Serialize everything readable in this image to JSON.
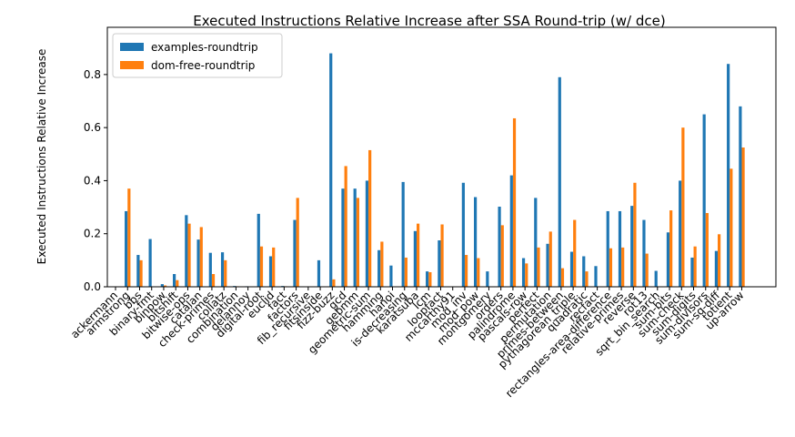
{
  "chart_data": {
    "type": "bar",
    "title": "Executed Instructions Relative Increase after SSA Round-trip (w/ dce)",
    "y_label": "Executed Instructions Relative Increase",
    "categories": [
      "ackermann",
      "armstrong",
      "bbs",
      "binary-fmt",
      "binpow",
      "bitshift",
      "bitwise-ops",
      "catalan",
      "check-primes",
      "collatz",
      "combination",
      "delannoy",
      "digital-root",
      "euclid",
      "fact",
      "factors",
      "fib_recursive",
      "fitsinside",
      "fizz-buzz",
      "gcd",
      "gebmm",
      "geometric-sum",
      "hamming",
      "hanoi",
      "is-decreasing",
      "karatsuba",
      "lcm",
      "loopfact",
      "mccarthy91",
      "mod_inv",
      "mod_pow",
      "montgomery",
      "orders",
      "palindrome",
      "pascals-row",
      "perfect",
      "permutation",
      "primes-between",
      "pythagorean_triple",
      "quadratic",
      "recfact",
      "rectangles-area-difference",
      "relative-primes",
      "reverse",
      "rot13",
      "sqrt_bin_search",
      "sum-bits",
      "sum-check",
      "sum-digits",
      "sum-divisors",
      "sum-sq-diff",
      "totient",
      "up-arrow"
    ],
    "series": [
      {
        "name": "examples-roundtrip",
        "color": "#1f77b4",
        "values": [
          0,
          0.285,
          0.12,
          0.18,
          0.01,
          0.048,
          0.27,
          0.178,
          0.128,
          0.13,
          0.003,
          0.002,
          0.275,
          0.115,
          0.003,
          0.252,
          0.001,
          0.1,
          0.88,
          0.37,
          0.37,
          0.4,
          0.138,
          0.08,
          0.395,
          0.21,
          0.058,
          0.175,
          0,
          0.392,
          0.338,
          0.058,
          0.302,
          0.42,
          0.108,
          0.335,
          0.162,
          0.79,
          0.132,
          0.115,
          0.078,
          0.285,
          0.285,
          0.305,
          0.252,
          0.06,
          0.205,
          0.4,
          0.11,
          0.65,
          0.135,
          0.84,
          0.68
        ]
      },
      {
        "name": "dom-free-roundtrip",
        "color": "#ff7f0e",
        "values": [
          0,
          0.37,
          0.1,
          0,
          0.005,
          0.025,
          0.238,
          0.225,
          0.048,
          0.1,
          0.002,
          0.001,
          0.152,
          0.148,
          0.002,
          0.335,
          0,
          0,
          0.028,
          0.455,
          0.335,
          0.515,
          0.17,
          0,
          0.11,
          0.238,
          0.055,
          0.235,
          0,
          0.12,
          0.108,
          0,
          0.232,
          0.635,
          0.088,
          0.148,
          0.208,
          0.07,
          0.252,
          0.058,
          0,
          0.145,
          0.148,
          0.392,
          0.125,
          0,
          0.288,
          0.6,
          0.152,
          0.278,
          0.198,
          0.445,
          0.525
        ]
      }
    ],
    "ylim": [
      0,
      0.954
    ],
    "yticks": [
      {
        "value": 0,
        "label": "0.0"
      },
      0.2,
      0.4,
      0.6,
      0.8
    ],
    "legend": "upper left"
  }
}
